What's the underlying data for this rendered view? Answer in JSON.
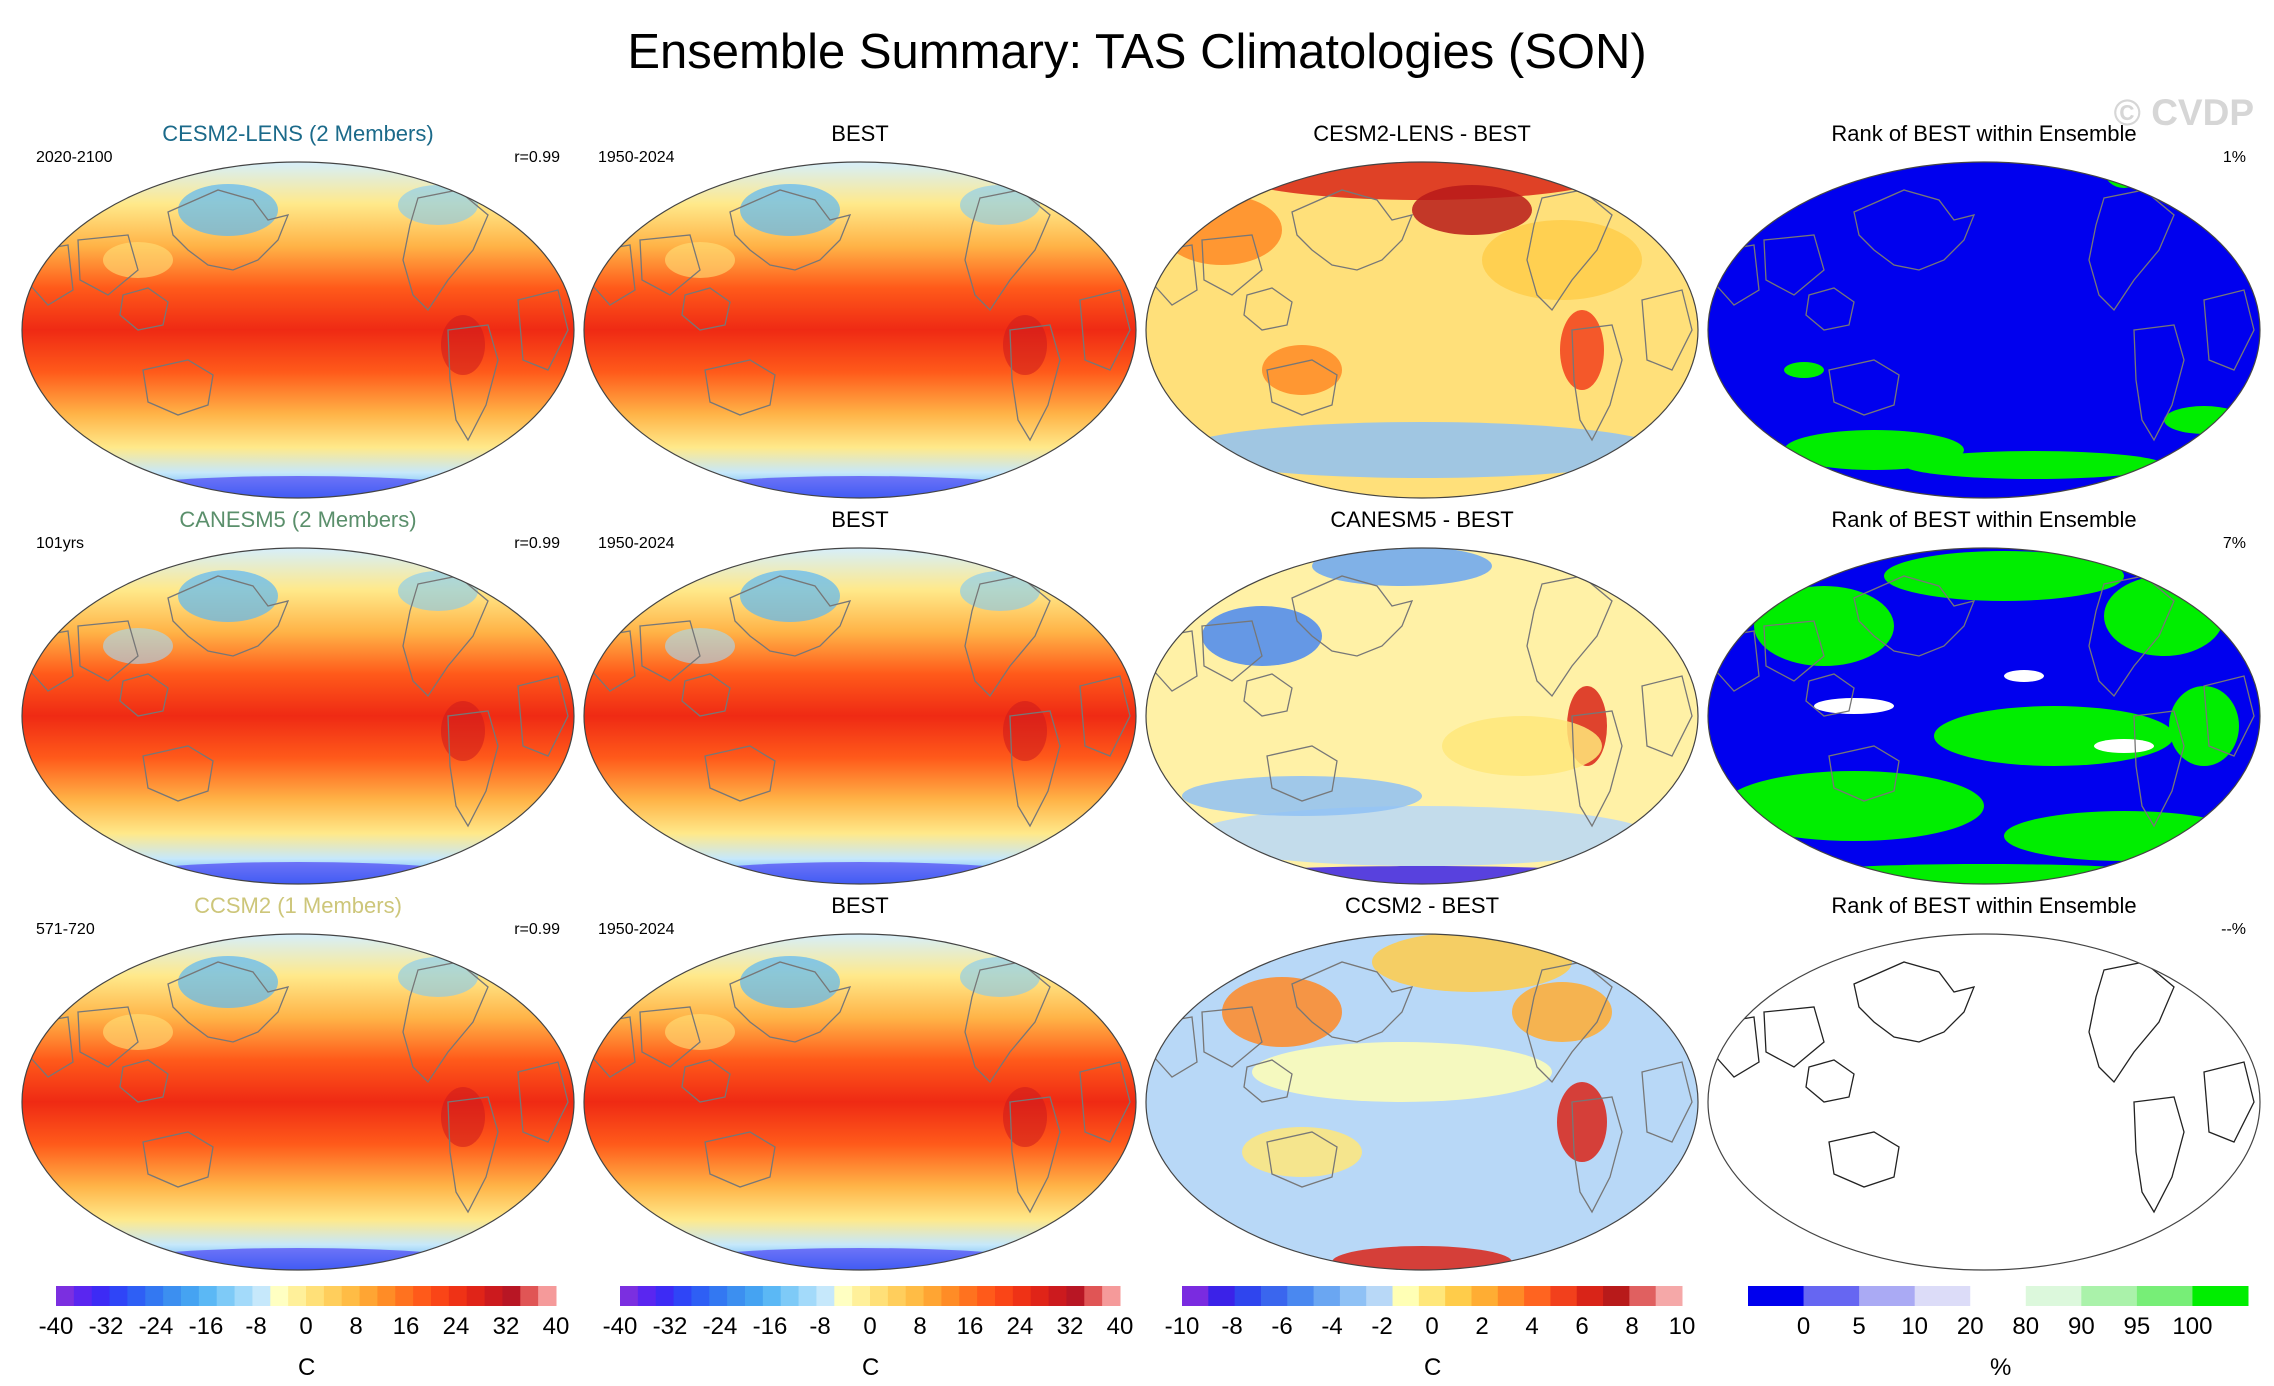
{
  "title": "Ensemble Summary: TAS Climatologies (SON)",
  "copyright": "© CVDP",
  "colors": {
    "model_title_colors": [
      "#1b6a8a",
      "#5a8f6b",
      "#cdc67a"
    ],
    "rank_low": "#0000ff",
    "rank_high": "#00ff00",
    "coastline": "#777777"
  },
  "rows": [
    {
      "model": {
        "title": "CESM2-LENS (2 Members)",
        "period": "2020-2100",
        "corr": "r=0.99"
      },
      "obs": {
        "title": "BEST",
        "period": "1950-2024"
      },
      "diff": {
        "title": "CESM2-LENS - BEST"
      },
      "rank": {
        "title": "Rank of BEST within Ensemble",
        "pct": "1%"
      }
    },
    {
      "model": {
        "title": "CANESM5 (2 Members)",
        "period": "101yrs",
        "corr": "r=0.99"
      },
      "obs": {
        "title": "BEST",
        "period": "1950-2024"
      },
      "diff": {
        "title": "CANESM5 - BEST"
      },
      "rank": {
        "title": "Rank of BEST within Ensemble",
        "pct": "7%"
      }
    },
    {
      "model": {
        "title": "CCSM2 (1 Members)",
        "period": "571-720",
        "corr": "r=0.99"
      },
      "obs": {
        "title": "BEST",
        "period": "1950-2024"
      },
      "diff": {
        "title": "CCSM2 - BEST"
      },
      "rank": {
        "title": "Rank of BEST within Ensemble",
        "pct": "--%"
      }
    }
  ],
  "colorbars": [
    {
      "units": "C",
      "labels": [
        "-40",
        "-32",
        "-24",
        "-16",
        "-8",
        "0",
        "8",
        "16",
        "24",
        "32",
        "40"
      ],
      "colors": [
        "#7b2fe0",
        "#5a26f0",
        "#3d2bf5",
        "#2f45f7",
        "#2e5ff5",
        "#3378f2",
        "#3c8ff0",
        "#45a3f2",
        "#5bb8f5",
        "#7ecaf7",
        "#a3dafa",
        "#c6e8fb",
        "#ffffc2",
        "#fff09a",
        "#ffe078",
        "#ffce5c",
        "#ffbc45",
        "#ffa533",
        "#ff8c26",
        "#ff721f",
        "#ff5a1a",
        "#fa4517",
        "#ef3216",
        "#e02418",
        "#cc1a1e",
        "#b81624",
        "#e05555",
        "#f59a9a"
      ]
    },
    {
      "units": "C",
      "labels": [
        "-40",
        "-32",
        "-24",
        "-16",
        "-8",
        "0",
        "8",
        "16",
        "24",
        "32",
        "40"
      ],
      "colors": [
        "#7b2fe0",
        "#5a26f0",
        "#3d2bf5",
        "#2f45f7",
        "#2e5ff5",
        "#3378f2",
        "#3c8ff0",
        "#45a3f2",
        "#5bb8f5",
        "#7ecaf7",
        "#a3dafa",
        "#c6e8fb",
        "#ffffc2",
        "#fff09a",
        "#ffe078",
        "#ffce5c",
        "#ffbc45",
        "#ffa533",
        "#ff8c26",
        "#ff721f",
        "#ff5a1a",
        "#fa4517",
        "#ef3216",
        "#e02418",
        "#cc1a1e",
        "#b81624",
        "#e05555",
        "#f59a9a"
      ]
    },
    {
      "units": "C",
      "labels": [
        "-10",
        "-8",
        "-6",
        "-4",
        "-2",
        "0",
        "2",
        "4",
        "6",
        "8",
        "10"
      ],
      "colors": [
        "#7a2be0",
        "#3b22e8",
        "#2f45ee",
        "#3a66ee",
        "#4a88f0",
        "#6aa6f2",
        "#8fc1f5",
        "#b8d8f7",
        "#ffffb5",
        "#ffe77a",
        "#ffcc4a",
        "#ffad33",
        "#ff8a26",
        "#ff6420",
        "#f2401c",
        "#d92418",
        "#b81a1a",
        "#e06060",
        "#f5a8a8"
      ]
    },
    {
      "units": "%",
      "labels": [
        "0",
        "5",
        "10",
        "20",
        "80",
        "90",
        "95",
        "100"
      ],
      "colors": [
        "#0000ee",
        "#6666f2",
        "#aaaaf4",
        "#dcdcf8",
        "#ffffff",
        "#dcf8dc",
        "#aaf2aa",
        "#77ee77",
        "#00ee00"
      ]
    }
  ],
  "chart_data": [
    {
      "type": "heatmap",
      "description_free": true,
      "variable": "TAS",
      "season": "SON",
      "panels": [
        {
          "row": 1,
          "col": 1,
          "title": "CESM2-LENS (2 Members)",
          "left": "2020-2100",
          "right": "r=0.99",
          "range": [
            -40,
            40
          ],
          "units": "C"
        },
        {
          "row": 1,
          "col": 2,
          "title": "BEST",
          "left": "1950-2024",
          "range": [
            -40,
            40
          ],
          "units": "C"
        },
        {
          "row": 1,
          "col": 3,
          "title": "CESM2-LENS - BEST",
          "range": [
            -10,
            10
          ],
          "units": "C"
        },
        {
          "row": 1,
          "col": 4,
          "title": "Rank of BEST within Ensemble",
          "right": "1%",
          "range": [
            0,
            100
          ],
          "units": "%"
        },
        {
          "row": 2,
          "col": 1,
          "title": "CANESM5 (2 Members)",
          "left": "101yrs",
          "right": "r=0.99",
          "range": [
            -40,
            40
          ],
          "units": "C"
        },
        {
          "row": 2,
          "col": 2,
          "title": "BEST",
          "left": "1950-2024",
          "range": [
            -40,
            40
          ],
          "units": "C"
        },
        {
          "row": 2,
          "col": 3,
          "title": "CANESM5 - BEST",
          "range": [
            -10,
            10
          ],
          "units": "C"
        },
        {
          "row": 2,
          "col": 4,
          "title": "Rank of BEST within Ensemble",
          "right": "7%",
          "range": [
            0,
            100
          ],
          "units": "%"
        },
        {
          "row": 3,
          "col": 1,
          "title": "CCSM2 (1 Members)",
          "left": "571-720",
          "right": "r=0.99",
          "range": [
            -40,
            40
          ],
          "units": "C"
        },
        {
          "row": 3,
          "col": 2,
          "title": "BEST",
          "left": "1950-2024",
          "range": [
            -40,
            40
          ],
          "units": "C"
        },
        {
          "row": 3,
          "col": 3,
          "title": "CCSM2 - BEST",
          "range": [
            -10,
            10
          ],
          "units": "C"
        },
        {
          "row": 3,
          "col": 4,
          "title": "Rank of BEST within Ensemble",
          "right": "--%",
          "range": [
            0,
            100
          ],
          "units": "%"
        }
      ]
    }
  ]
}
